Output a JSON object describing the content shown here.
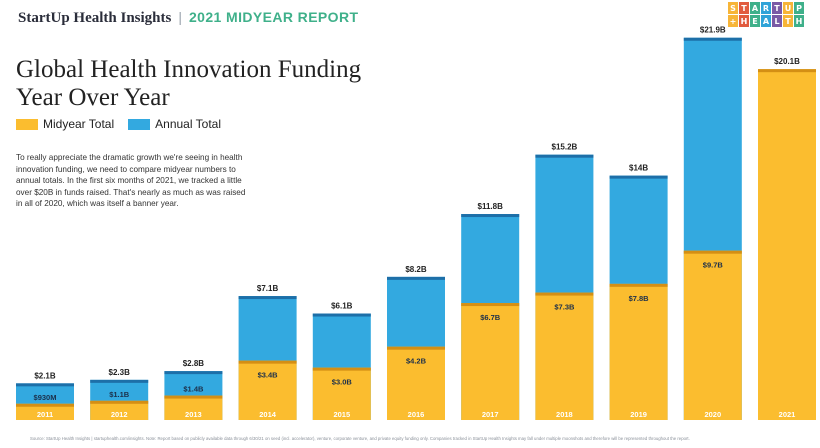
{
  "header": {
    "brand": "StartUp Health Insights",
    "separator": "|",
    "report": "2021 MIDYEAR REPORT"
  },
  "logo": {
    "row1": [
      "S",
      "T",
      "A",
      "R",
      "T",
      "U",
      "P"
    ],
    "row2": [
      "+",
      "H",
      "E",
      "A",
      "L",
      "T",
      "H"
    ],
    "colors": [
      "#f7b538",
      "#e15b3f",
      "#3fb08a",
      "#2fa3d8",
      "#7a5aa6",
      "#f7b538",
      "#3fb08a"
    ]
  },
  "title_line1": "Global Health Innovation Funding",
  "title_line2": "Year Over Year",
  "description": "To really appreciate the dramatic growth we're seeing in health innovation funding, we need to compare midyear numbers to annual totals. In the first six months of 2021, we tracked a little over $20B in funds raised. That's nearly as much as was raised in all of 2020, which was itself a banner year.",
  "footnote": "Source: StartUp Health Insights | startuphealth.com/insights. Note: Report based on publicly available data through 6/30/21 on seed (incl. accelerator), venture, corporate venture, and private equity funding only. Companies tracked in StartUp Health Insights may fall under multiple moonshots and therefore will be represented throughout the report.",
  "chart_data": {
    "type": "bar",
    "categories": [
      "2011",
      "2012",
      "2013",
      "2014",
      "2015",
      "2016",
      "2017",
      "2018",
      "2019",
      "2020",
      "2021"
    ],
    "series": [
      {
        "name": "Midyear Total",
        "color": "#fbbd2f",
        "values": [
          0.93,
          1.1,
          1.4,
          3.4,
          3.0,
          4.2,
          6.7,
          7.3,
          7.8,
          9.7,
          20.1
        ],
        "labels": [
          "$930M",
          "$1.1B",
          "$1.4B",
          "$3.4B",
          "$3.0B",
          "$4.2B",
          "$6.7B",
          "$7.3B",
          "$7.8B",
          "$9.7B",
          "$20.1B"
        ]
      },
      {
        "name": "Annual Total",
        "color": "#33a9e0",
        "values": [
          2.1,
          2.3,
          2.8,
          7.1,
          6.1,
          8.2,
          11.8,
          15.2,
          14,
          21.9,
          null
        ],
        "labels": [
          "$2.1B",
          "$2.3B",
          "$2.8B",
          "$7.1B",
          "$6.1B",
          "$8.2B",
          "$11.8B",
          "$15.2B",
          "$14B",
          "$21.9B",
          ""
        ]
      }
    ],
    "ylim": [
      0,
      22
    ],
    "grid": false,
    "legend": "top-left"
  }
}
